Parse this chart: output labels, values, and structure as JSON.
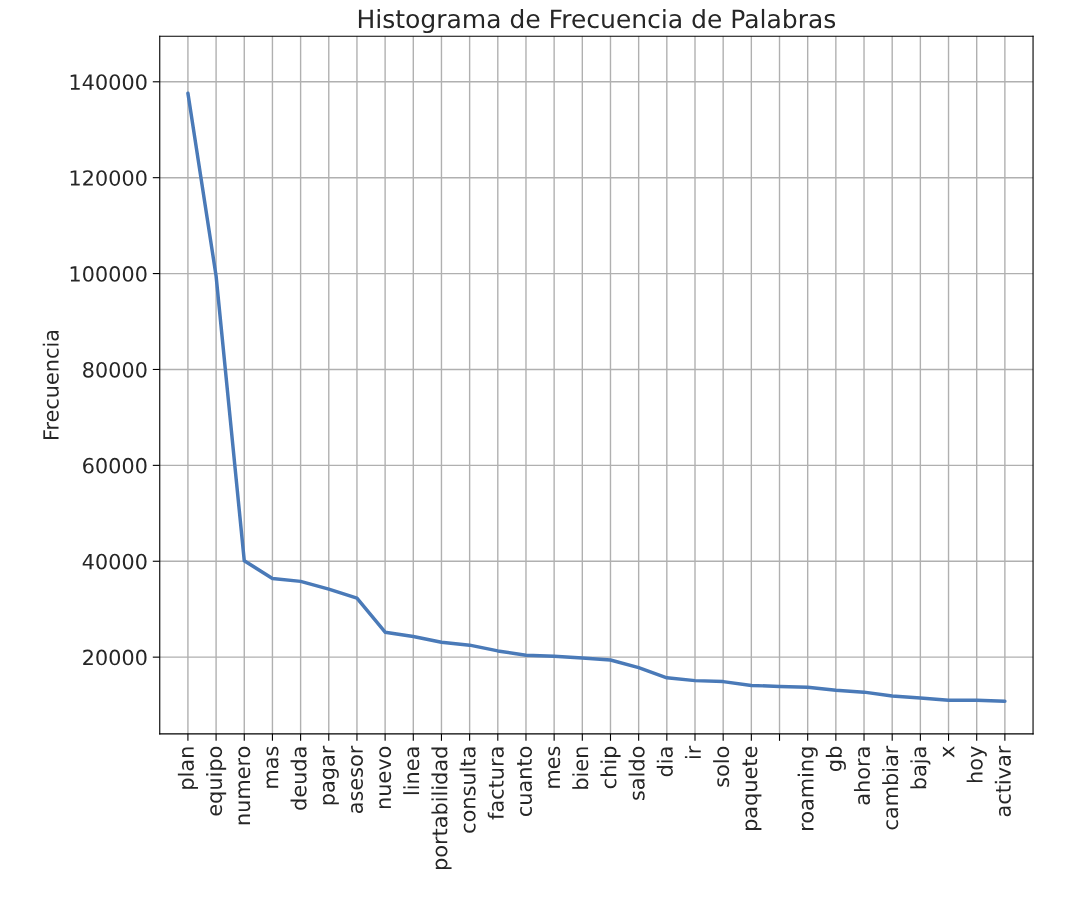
{
  "chart_data": {
    "type": "line",
    "title": "Histograma de Frecuencia de Palabras",
    "ylabel": "Frecuencia",
    "categories": [
      "plan",
      "equipo",
      "numero",
      "mas",
      "deuda",
      "pagar",
      "asesor",
      "nuevo",
      "linea",
      "portabilidad",
      "consulta",
      "factura",
      "cuanto",
      "mes",
      "bien",
      "chip",
      "saldo",
      "dia",
      "ir",
      "solo",
      "paquete",
      null,
      "roaming",
      "gb",
      "ahora",
      "cambiar",
      "baja",
      "x",
      "hoy",
      "activar"
    ],
    "series": [
      {
        "color": "#4a7ab8",
        "values": [
          137600,
          99500,
          40100,
          36400,
          35800,
          34200,
          32300,
          25200,
          24300,
          23100,
          22500,
          21300,
          20400,
          20200,
          19800,
          19400,
          17800,
          15700,
          15100,
          14900,
          14100,
          13900,
          13700,
          13100,
          12700,
          11900,
          11500,
          11000,
          11000,
          10800
        ]
      }
    ],
    "ylim": [
      4000,
      149500
    ],
    "yticks": [
      20000,
      40000,
      60000,
      80000,
      100000,
      120000,
      140000
    ],
    "grid": true,
    "marker": "none",
    "line_style": "solid"
  }
}
